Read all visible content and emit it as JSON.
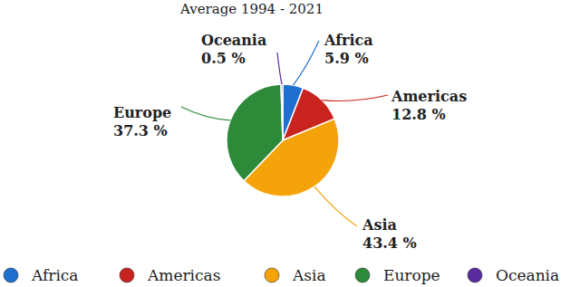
{
  "chart_data": {
    "type": "pie",
    "title": "Average 1994 - 2021",
    "categories": [
      "Africa",
      "Americas",
      "Asia",
      "Europe",
      "Oceania"
    ],
    "values": [
      5.9,
      12.8,
      43.4,
      37.3,
      0.5
    ],
    "value_labels": [
      "5.9 %",
      "12.8 %",
      "43.4 %",
      "37.3 %",
      "0.5 %"
    ],
    "colors": [
      "#1f6fd0",
      "#c8231f",
      "#f5a30a",
      "#2d8a39",
      "#5a2aa0"
    ],
    "data_labels": true,
    "legend": "bottom"
  }
}
